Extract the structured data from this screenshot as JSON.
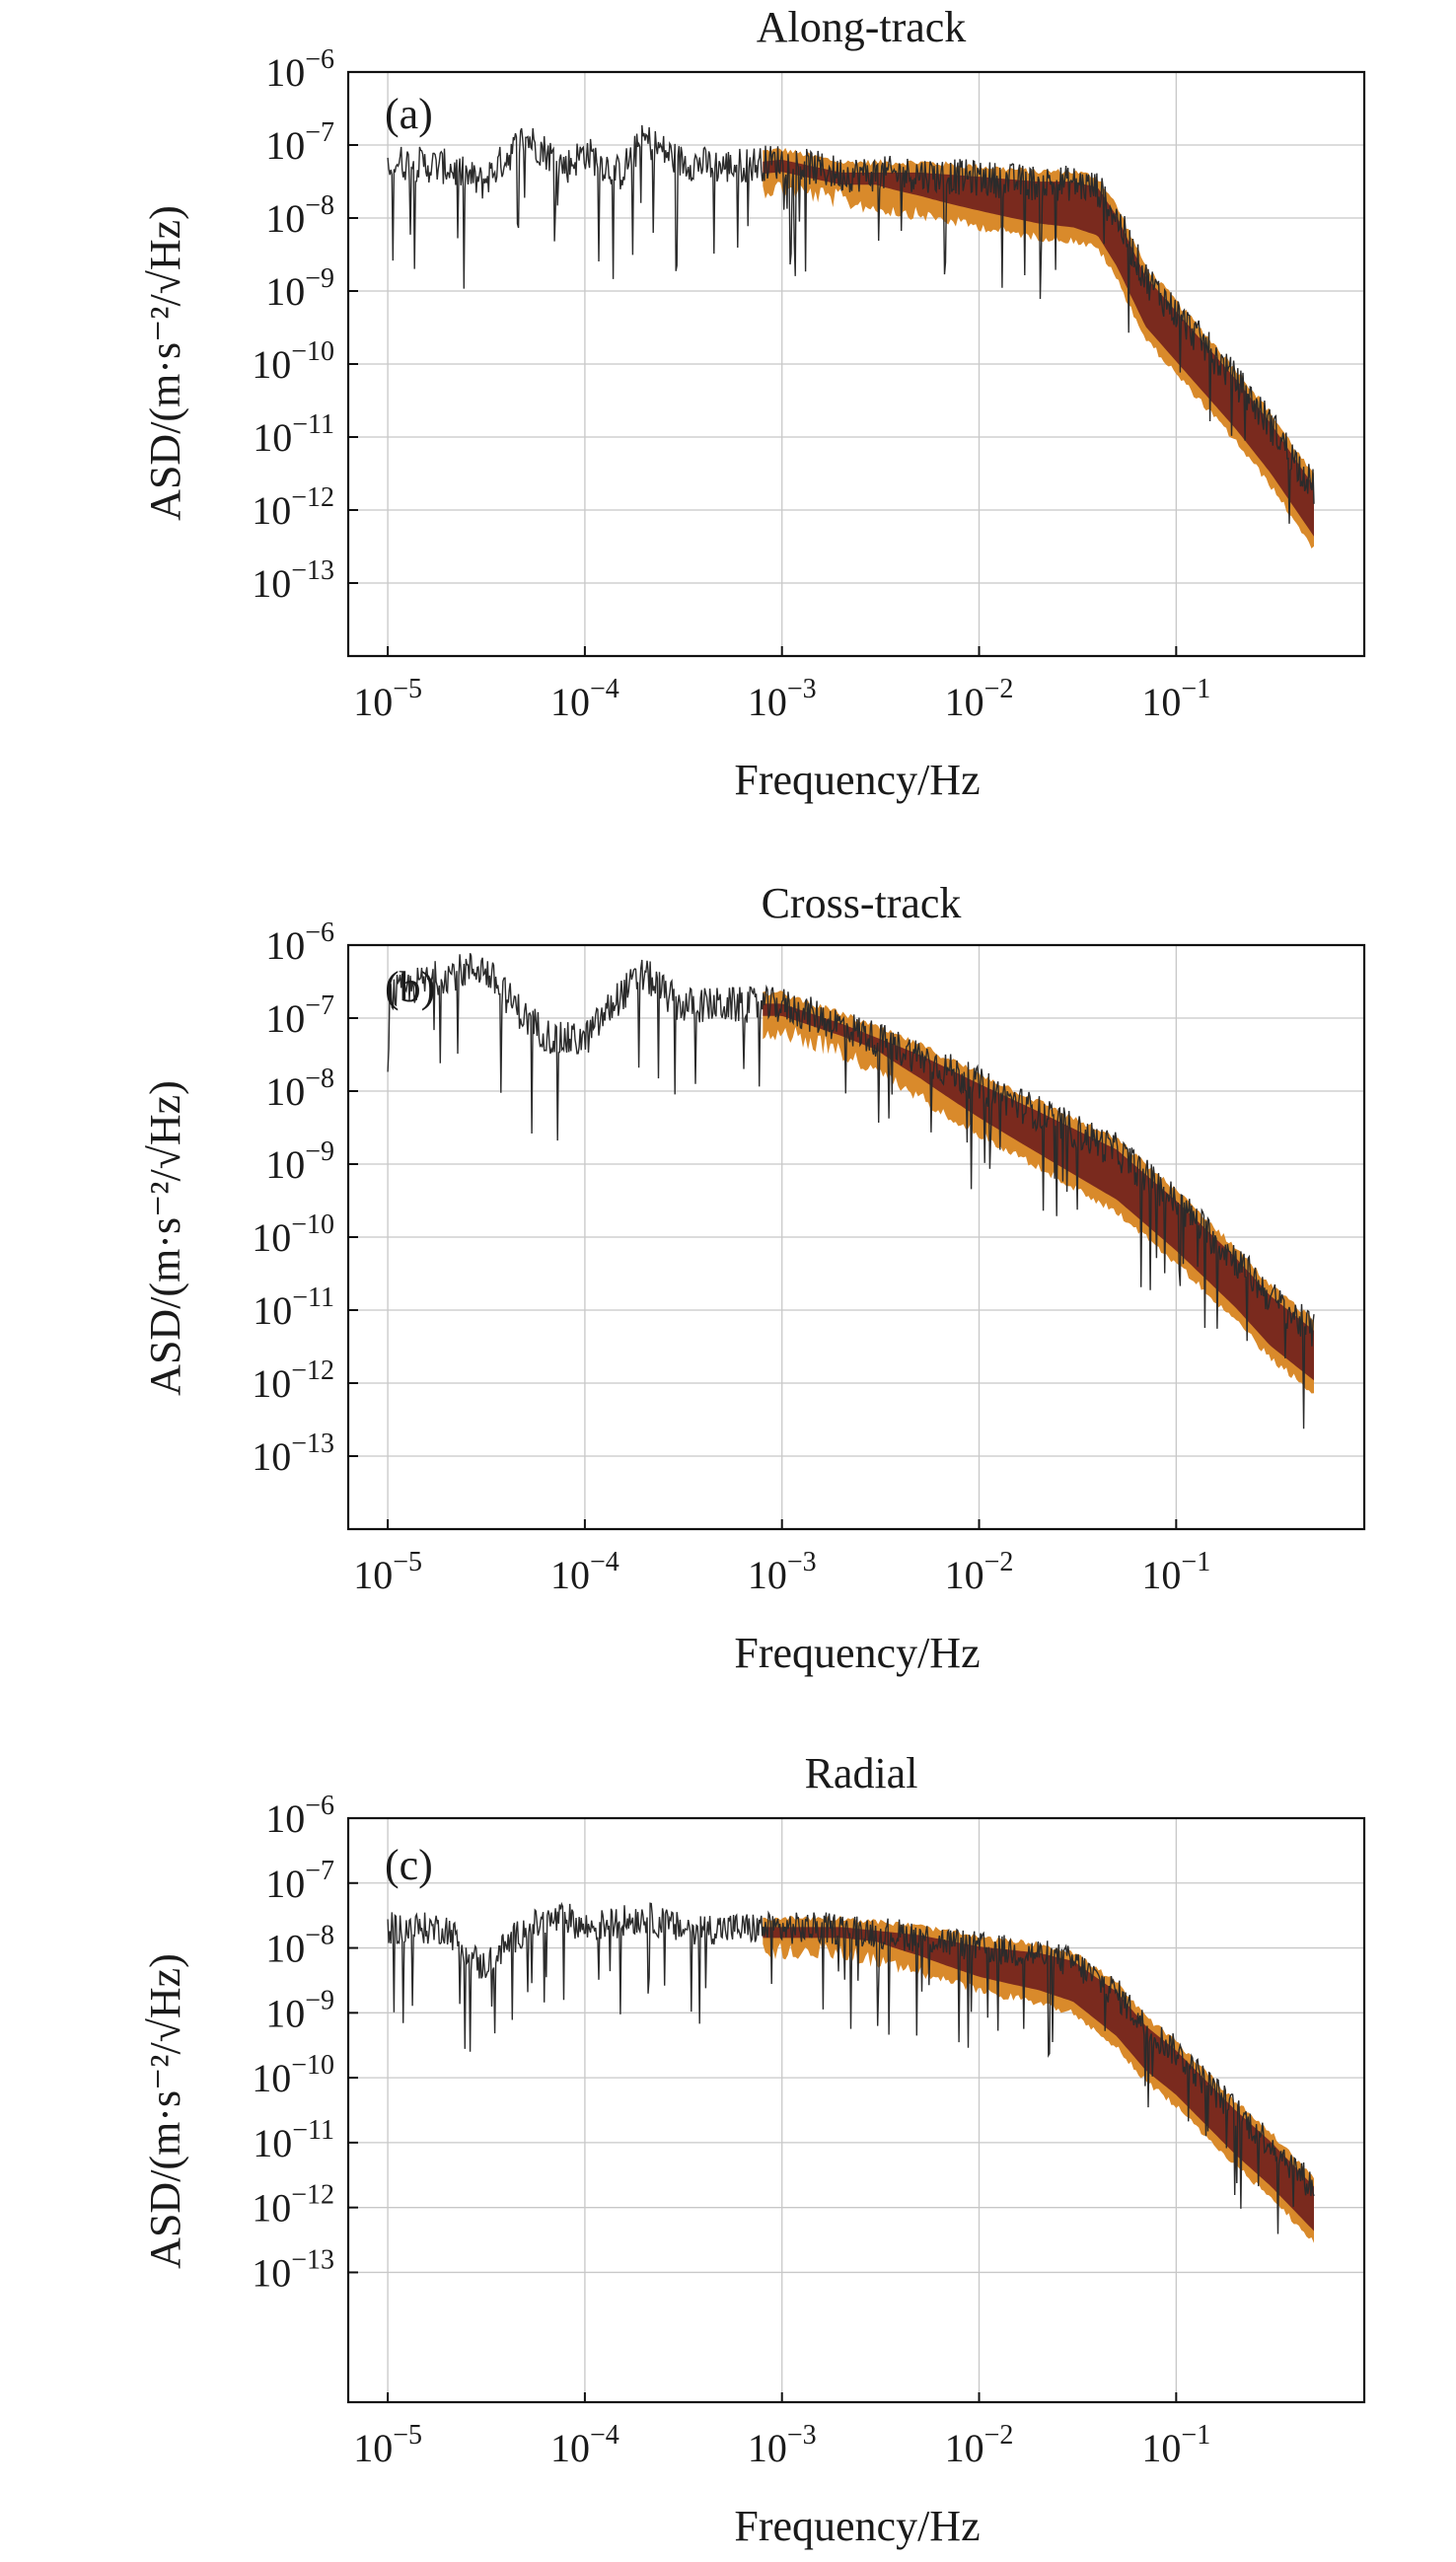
{
  "chart_data": [
    {
      "type": "line",
      "panel_label": "(a)",
      "title": "Along-track",
      "xlabel": "Frequency/Hz",
      "ylabel": "ASD/(m·s⁻²/√Hz)",
      "xscale": "log",
      "yscale": "log",
      "xlim": [
        6.3e-06,
        0.9
      ],
      "ylim": [
        1e-14,
        1e-06
      ],
      "x_ticks": [
        "10^-5",
        "10^-4",
        "10^-3",
        "10^-2",
        "10^-1"
      ],
      "y_ticks": [
        "10^-6",
        "10^-7",
        "10^-8",
        "10^-9",
        "10^-10",
        "10^-11",
        "10^-12",
        "10^-13"
      ],
      "grid": true,
      "series": [
        {
          "color": "#2b2b2b",
          "x": [
            1e-05,
            2e-05,
            3e-05,
            5e-05,
            8e-05,
            0.0001,
            0.00015,
            0.0002,
            0.0003,
            0.0005,
            0.001,
            0.002,
            0.005,
            0.01,
            0.02,
            0.03,
            0.04,
            0.05,
            0.07,
            0.1,
            0.2,
            0.3,
            0.5
          ],
          "y": [
            6e-08,
            5e-08,
            3e-08,
            1.3e-07,
            5e-08,
            8e-08,
            4e-08,
            1.2e-07,
            6e-08,
            5e-08,
            6e-08,
            4e-08,
            4e-08,
            3.5e-08,
            3e-08,
            3e-08,
            2.5e-08,
            1e-08,
            1.5e-09,
            5e-10,
            6e-11,
            1.5e-11,
            2e-12
          ]
        }
      ]
    },
    {
      "type": "line",
      "panel_label": "(b)",
      "title": "Cross-track",
      "xlabel": "Frequency/Hz",
      "ylabel": "ASD/(m·s⁻²/√Hz)",
      "xscale": "log",
      "yscale": "log",
      "xlim": [
        6.3e-06,
        0.9
      ],
      "ylim": [
        1e-14,
        1e-06
      ],
      "x_ticks": [
        "10^-5",
        "10^-4",
        "10^-3",
        "10^-2",
        "10^-1"
      ],
      "y_ticks": [
        "10^-6",
        "10^-7",
        "10^-8",
        "10^-9",
        "10^-10",
        "10^-11",
        "10^-12",
        "10^-13"
      ],
      "grid": true,
      "series": [
        {
          "color": "#2b2b2b",
          "x": [
            1e-05,
            2e-05,
            3e-05,
            5e-05,
            7e-05,
            0.0001,
            0.00015,
            0.0002,
            0.0003,
            0.0005,
            0.001,
            0.002,
            0.005,
            0.01,
            0.02,
            0.05,
            0.1,
            0.2,
            0.3,
            0.5
          ],
          "y": [
            2e-07,
            4e-07,
            5e-07,
            1e-07,
            5e-08,
            5e-08,
            2e-07,
            4e-07,
            1.5e-07,
            1.5e-07,
            1.5e-07,
            8e-08,
            3e-08,
            1.2e-08,
            5e-09,
            1.5e-09,
            3e-10,
            5e-11,
            1.5e-11,
            5e-12
          ]
        }
      ]
    },
    {
      "type": "line",
      "panel_label": "(c)",
      "title": "Radial",
      "xlabel": "Frequency/Hz",
      "ylabel": "ASD/(m·s⁻²/√Hz)",
      "xscale": "log",
      "yscale": "log",
      "xlim": [
        6.3e-06,
        0.9
      ],
      "ylim": [
        1e-15,
        1e-06
      ],
      "x_ticks": [
        "10^-5",
        "10^-4",
        "10^-3",
        "10^-2",
        "10^-1"
      ],
      "y_ticks": [
        "10^-6",
        "10^-7",
        "10^-8",
        "10^-9",
        "10^-10",
        "10^-11",
        "10^-12",
        "10^-13"
      ],
      "grid": true,
      "series": [
        {
          "color": "#2b2b2b",
          "x": [
            1e-05,
            2e-05,
            3e-05,
            5e-05,
            8e-05,
            0.0001,
            0.0002,
            0.0003,
            0.0005,
            0.001,
            0.002,
            0.005,
            0.01,
            0.02,
            0.03,
            0.05,
            0.07,
            0.1,
            0.2,
            0.3,
            0.5
          ],
          "y": [
            2e-08,
            2e-08,
            5e-09,
            2e-08,
            3e-08,
            2e-08,
            3e-08,
            2e-08,
            2e-08,
            2e-08,
            2e-08,
            1.5e-08,
            1e-08,
            8e-09,
            6e-09,
            2e-09,
            6e-10,
            2.5e-10,
            3e-11,
            1e-11,
            2e-12
          ]
        }
      ]
    }
  ]
}
